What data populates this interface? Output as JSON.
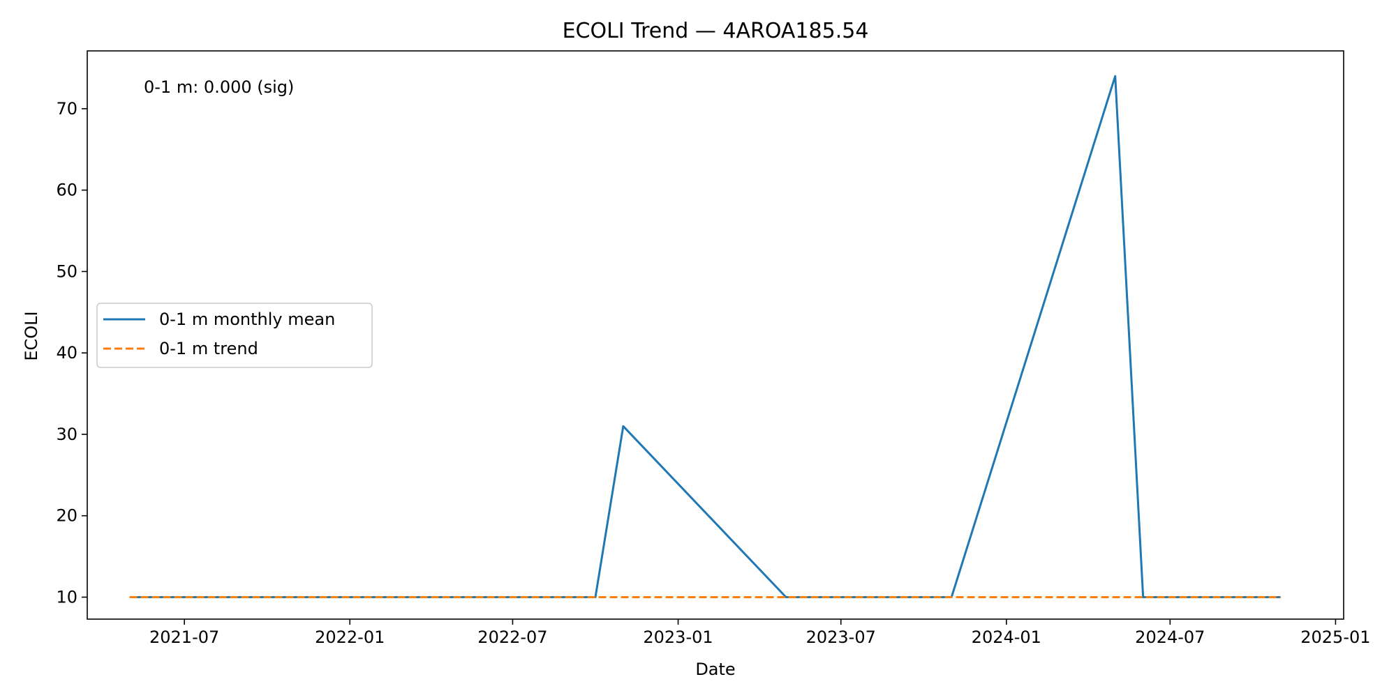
{
  "chart_data": {
    "type": "line",
    "title": "ECOLI Trend — 4AROA185.54",
    "xlabel": "Date",
    "ylabel": "ECOLI",
    "xlim": [
      "2021-03-15",
      "2025-01-10"
    ],
    "ylim": [
      7.3,
      77.1
    ],
    "x_ticks": [
      "2021-07",
      "2022-01",
      "2022-07",
      "2023-01",
      "2023-07",
      "2024-01",
      "2024-07",
      "2025-01"
    ],
    "y_ticks": [
      10,
      20,
      30,
      40,
      50,
      60,
      70
    ],
    "grid": false,
    "legend_position": "center-left",
    "annotation": "0-1 m: 0.000 (sig)",
    "series": [
      {
        "name": "0-1 m monthly mean",
        "color": "#1f77b4",
        "style": "solid",
        "points": [
          {
            "x": "2021-05-01",
            "y": 10
          },
          {
            "x": "2022-10-01",
            "y": 10
          },
          {
            "x": "2022-11-01",
            "y": 31
          },
          {
            "x": "2023-05-01",
            "y": 10
          },
          {
            "x": "2023-11-01",
            "y": 10
          },
          {
            "x": "2024-05-01",
            "y": 74
          },
          {
            "x": "2024-06-01",
            "y": 10
          },
          {
            "x": "2024-11-01",
            "y": 10
          }
        ]
      },
      {
        "name": "0-1 m trend",
        "color": "#ff7f0e",
        "style": "dashed",
        "points": [
          {
            "x": "2021-05-01",
            "y": 10
          },
          {
            "x": "2024-11-01",
            "y": 10
          }
        ]
      }
    ]
  }
}
